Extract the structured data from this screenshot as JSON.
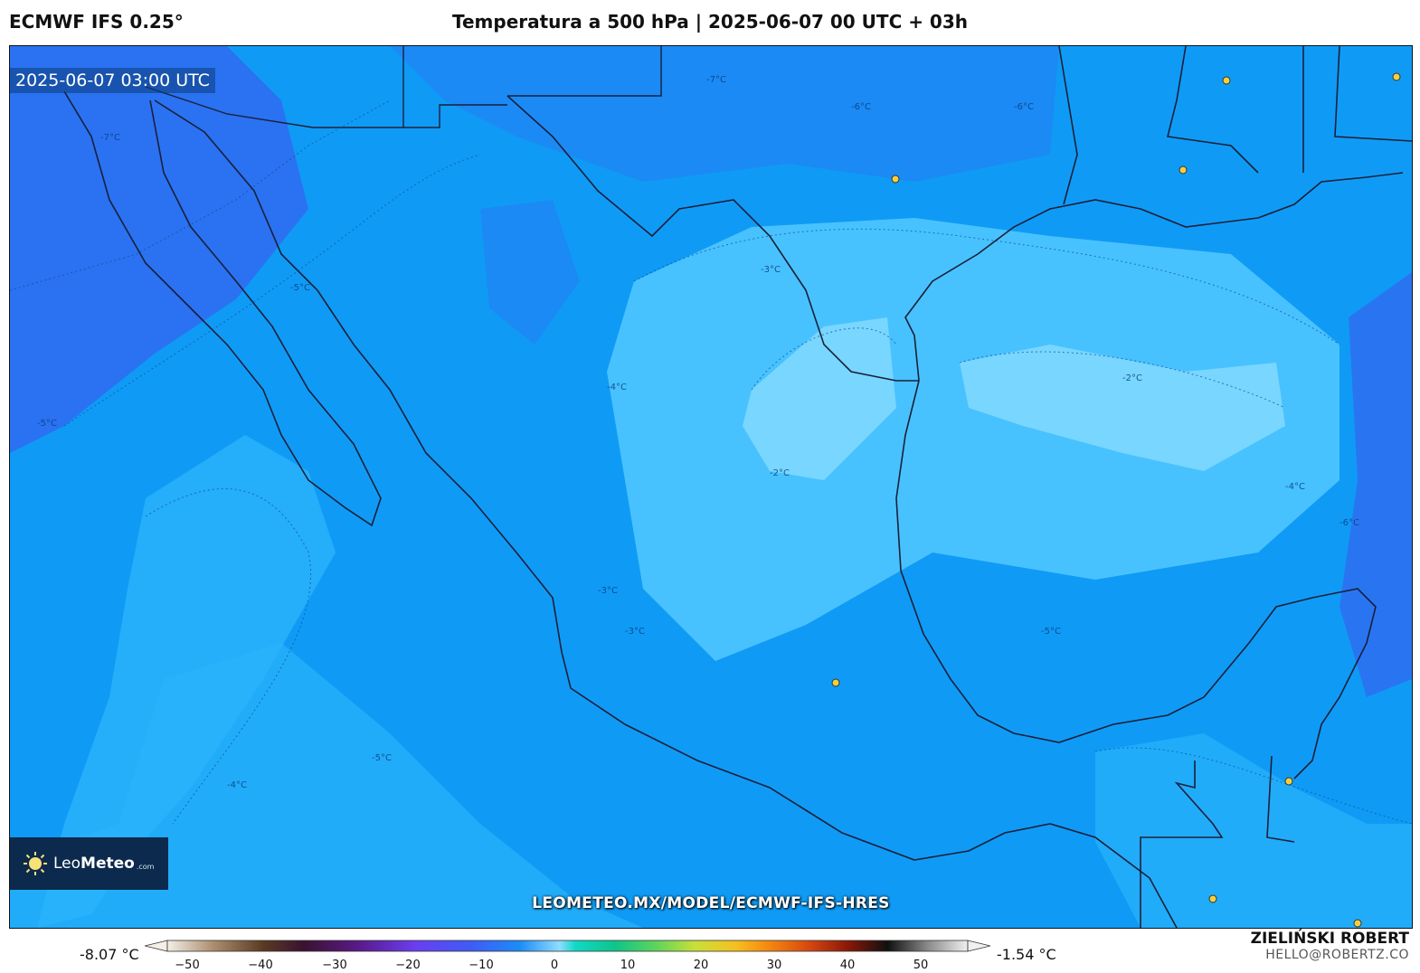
{
  "header": {
    "model": "ECMWF IFS 0.25°",
    "title": "Temperatura a 500 hPa | 2025-06-07 00 UTC + 03h"
  },
  "map": {
    "timestamp": "2025-06-07 03:00 UTC",
    "watermark_url": "LEOMETEO.MX/MODEL/ECMWF-IFS-HRES",
    "contour_labels": [
      "-7°C",
      "-6°C",
      "-5°C",
      "-4°C",
      "-3°C",
      "-2°C"
    ]
  },
  "logo": {
    "brand_light": "Leo",
    "brand_bold": "Meteo",
    "domain": ".com"
  },
  "colorbar": {
    "min_label": "-8.07 °C",
    "max_label": "-1.54 °C",
    "ticks": [
      "−50",
      "−40",
      "−30",
      "−20",
      "−10",
      "0",
      "10",
      "20",
      "30",
      "40",
      "50"
    ]
  },
  "credit": {
    "author": "ZIELIŃSKI ROBERT",
    "email": "HELLO@ROBERTZ.CO"
  },
  "colors": {
    "frame_base": "#0f9bf5",
    "cold": "#2f6bf0",
    "mid": "#1aa8f8",
    "warm": "#4fc7ff",
    "warmest": "#7dd8ff",
    "coast": "#1a1f3a",
    "city_marker": "#f4d03f"
  }
}
